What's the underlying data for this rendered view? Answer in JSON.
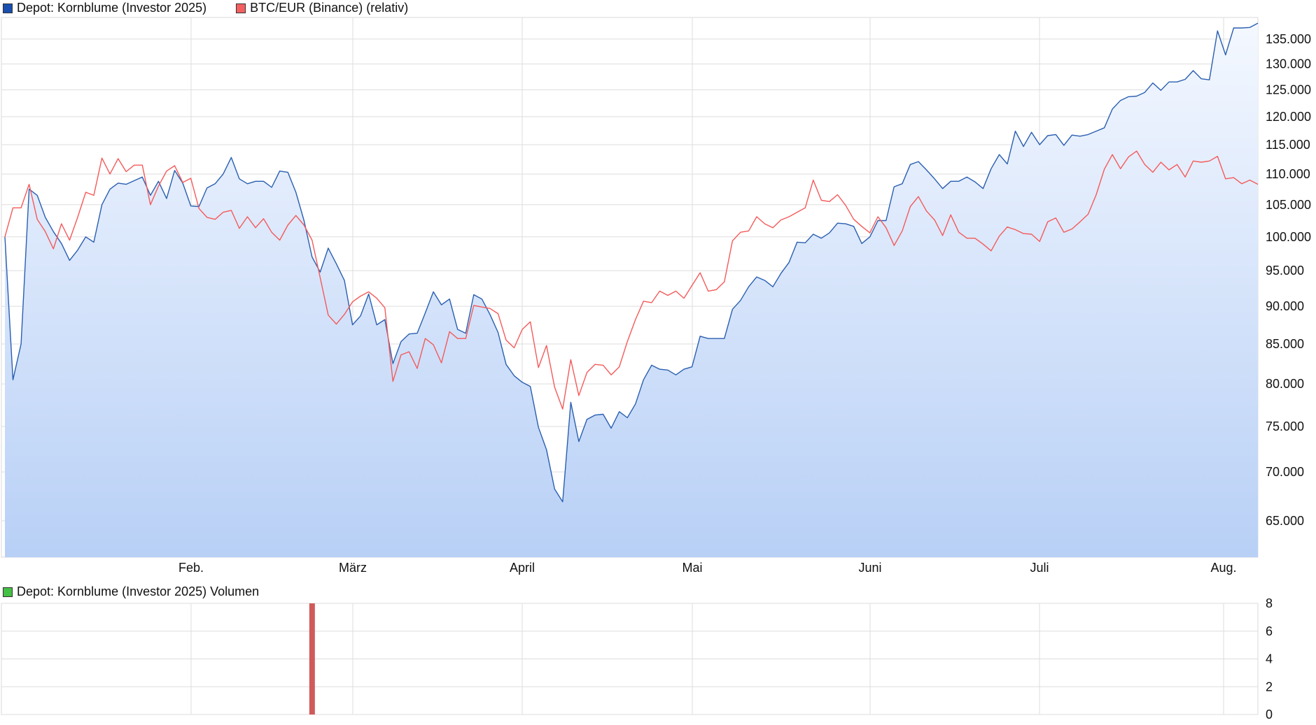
{
  "chart_data": [
    {
      "type": "line",
      "y_scale": "log",
      "ylim": [
        61500,
        139500
      ],
      "x_ticks": [
        "Feb.",
        "März",
        "April",
        "Mai",
        "Juni",
        "Juli",
        "Aug."
      ],
      "y_ticks": [
        "65.000",
        "70.000",
        "75.000",
        "80.000",
        "85.000",
        "90.000",
        "95.000",
        "100.000",
        "105.000",
        "110.000",
        "115.000",
        "120.000",
        "125.000",
        "130.000",
        "135.000"
      ],
      "grid": true,
      "legend": "top-left",
      "series": [
        {
          "name": "Depot: Kornblume (Investor 2025)",
          "color": "#2a5fb0",
          "area": true,
          "values": [
            100000,
            80500,
            85000,
            107500,
            106500,
            103000,
            100800,
            99000,
            96500,
            98000,
            100000,
            99200,
            105000,
            107500,
            108500,
            108300,
            108900,
            109500,
            106500,
            108800,
            106000,
            110600,
            108500,
            104800,
            104700,
            107700,
            108400,
            110000,
            112800,
            109200,
            108400,
            108800,
            108800,
            107800,
            110500,
            110300,
            107000,
            102500,
            97000,
            94800,
            98300,
            96000,
            93600,
            87500,
            88700,
            91700,
            87500,
            88200,
            82500,
            85300,
            86300,
            86400,
            89100,
            92000,
            90200,
            91000,
            86900,
            86400,
            91600,
            91000,
            88900,
            86500,
            82400,
            81000,
            80200,
            79700,
            74900,
            72400,
            68200,
            66900,
            77800,
            73300,
            75800,
            76300,
            76400,
            74800,
            76700,
            76000,
            77600,
            80500,
            82300,
            81800,
            81700,
            81100,
            81800,
            82100,
            86000,
            85700,
            85700,
            85700,
            89600,
            90800,
            92700,
            94100,
            93600,
            92700,
            94600,
            96200,
            99200,
            99100,
            100400,
            99800,
            100600,
            102100,
            102000,
            101600,
            99000,
            100000,
            102500,
            102500,
            107900,
            108400,
            111600,
            112100,
            110700,
            109200,
            107600,
            108800,
            108800,
            109500,
            108700,
            107600,
            110900,
            113300,
            111700,
            117400,
            114700,
            117200,
            115000,
            116600,
            116800,
            114900,
            116700,
            116500,
            116800,
            117400,
            118000,
            121400,
            123000,
            123700,
            123800,
            124500,
            126300,
            124900,
            126500,
            126500,
            127000,
            128700,
            127100,
            126900,
            136700,
            131800,
            137300,
            137300,
            137400,
            138300
          ]
        },
        {
          "name": "BTC/EUR (Binance) (relativ)",
          "color": "#f45a5a",
          "area": false,
          "values": [
            100000,
            104500,
            104500,
            108300,
            102700,
            100800,
            98200,
            102000,
            99500,
            103000,
            107000,
            106500,
            112700,
            110000,
            112600,
            110400,
            111500,
            111500,
            105000,
            108000,
            110500,
            111400,
            108600,
            109300,
            104400,
            103000,
            102700,
            103800,
            104100,
            101300,
            103100,
            101400,
            102800,
            100700,
            99500,
            101800,
            103300,
            101800,
            99500,
            94000,
            88800,
            87600,
            88900,
            90600,
            91400,
            92000,
            91100,
            89800,
            80300,
            83600,
            84000,
            81900,
            85700,
            84900,
            82600,
            86600,
            85700,
            85700,
            90100,
            89900,
            89700,
            89000,
            85500,
            84500,
            86900,
            87900,
            82000,
            84800,
            79600,
            77000,
            83000,
            78600,
            81400,
            82400,
            82300,
            81100,
            82100,
            85300,
            88200,
            90700,
            90500,
            92100,
            91500,
            92100,
            91100,
            92900,
            94700,
            92100,
            92300,
            93400,
            99400,
            100700,
            100900,
            103100,
            102000,
            101400,
            102600,
            103100,
            103800,
            104500,
            109000,
            105700,
            105500,
            106600,
            104900,
            102700,
            101600,
            100600,
            103100,
            101400,
            98700,
            100900,
            104700,
            106300,
            104000,
            102600,
            100200,
            103400,
            100700,
            99800,
            99800,
            98900,
            97900,
            100100,
            101500,
            101100,
            100500,
            100400,
            99300,
            102300,
            102900,
            100700,
            101200,
            102300,
            103500,
            106600,
            110800,
            113300,
            110900,
            112900,
            113900,
            111600,
            110300,
            112000,
            110700,
            111600,
            109500,
            112200,
            112000,
            112200,
            113000,
            109200,
            109400,
            108400,
            109000,
            108300
          ]
        }
      ]
    },
    {
      "type": "bar",
      "ylim": [
        0,
        8
      ],
      "y_ticks": [
        "0",
        "2",
        "4",
        "6",
        "8"
      ],
      "grid": true,
      "legend": "top-left",
      "series": [
        {
          "name": "Depot: Kornblume (Investor 2025) Volumen",
          "color": "#d05a5a",
          "bars": [
            {
              "index": 38,
              "value": 8
            }
          ]
        }
      ]
    }
  ],
  "legend": {
    "depot": {
      "label": "Depot: Kornblume (Investor 2025)",
      "color": "#1a4fb0"
    },
    "btc": {
      "label": "BTC/EUR (Binance) (relativ)",
      "color": "#f46060"
    },
    "volume": {
      "label": "Depot: Kornblume (Investor 2025) Volumen",
      "color": "#44c044"
    }
  }
}
